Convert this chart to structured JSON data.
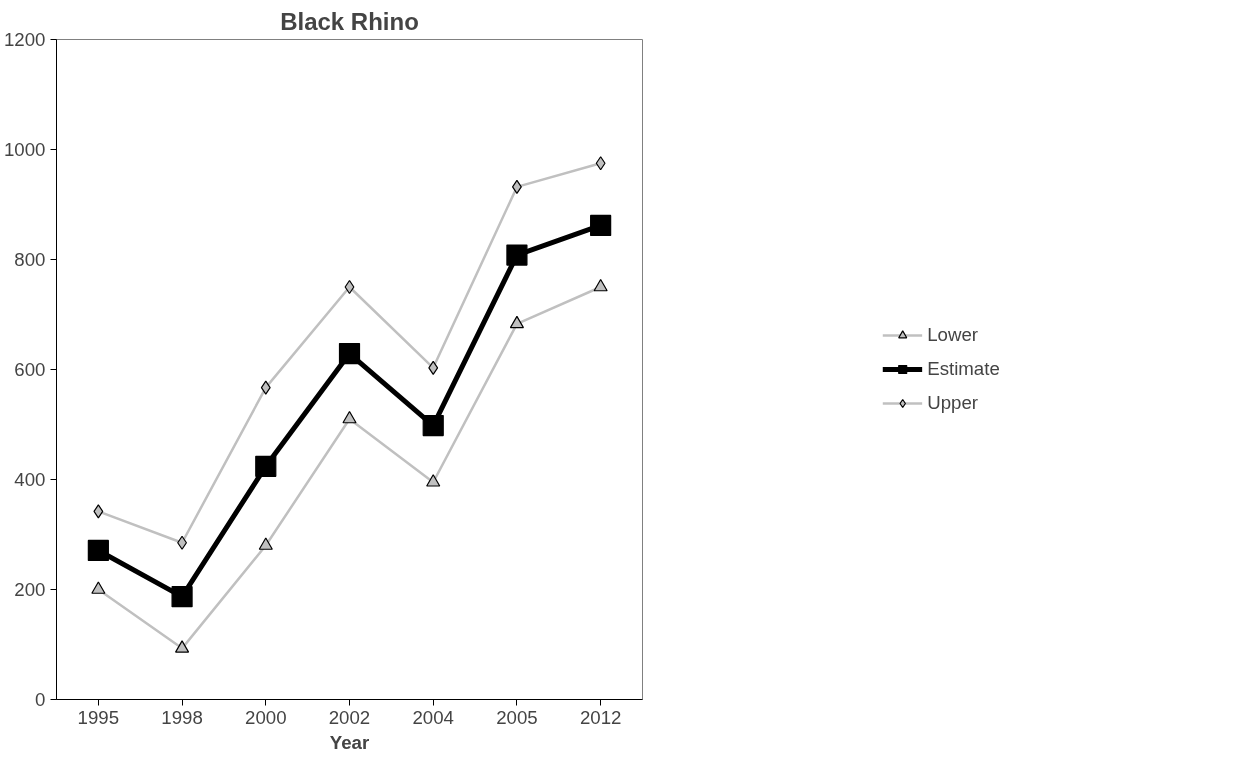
{
  "chart_data": {
    "type": "line",
    "title": "Black Rhino",
    "xlabel": "Year",
    "categories": [
      "1995",
      "1998",
      "2000",
      "2002",
      "2004",
      "2005",
      "2012"
    ],
    "series": [
      {
        "name": "Lower",
        "color": "#c0c0c0",
        "marker": "triangle",
        "values": [
          200,
          93,
          280,
          510,
          395,
          683,
          750
        ]
      },
      {
        "name": "Estimate",
        "color": "#000000",
        "marker": "square",
        "values": [
          271,
          187,
          424,
          629,
          498,
          808,
          862
        ]
      },
      {
        "name": "Upper",
        "color": "#c0c0c0",
        "marker": "diamond",
        "values": [
          342,
          285,
          567,
          750,
          603,
          932,
          975
        ]
      }
    ],
    "ylim": [
      0,
      1200
    ],
    "yticks": [
      0,
      200,
      400,
      600,
      800,
      1000,
      1200
    ],
    "grid": false,
    "legend": "right"
  }
}
